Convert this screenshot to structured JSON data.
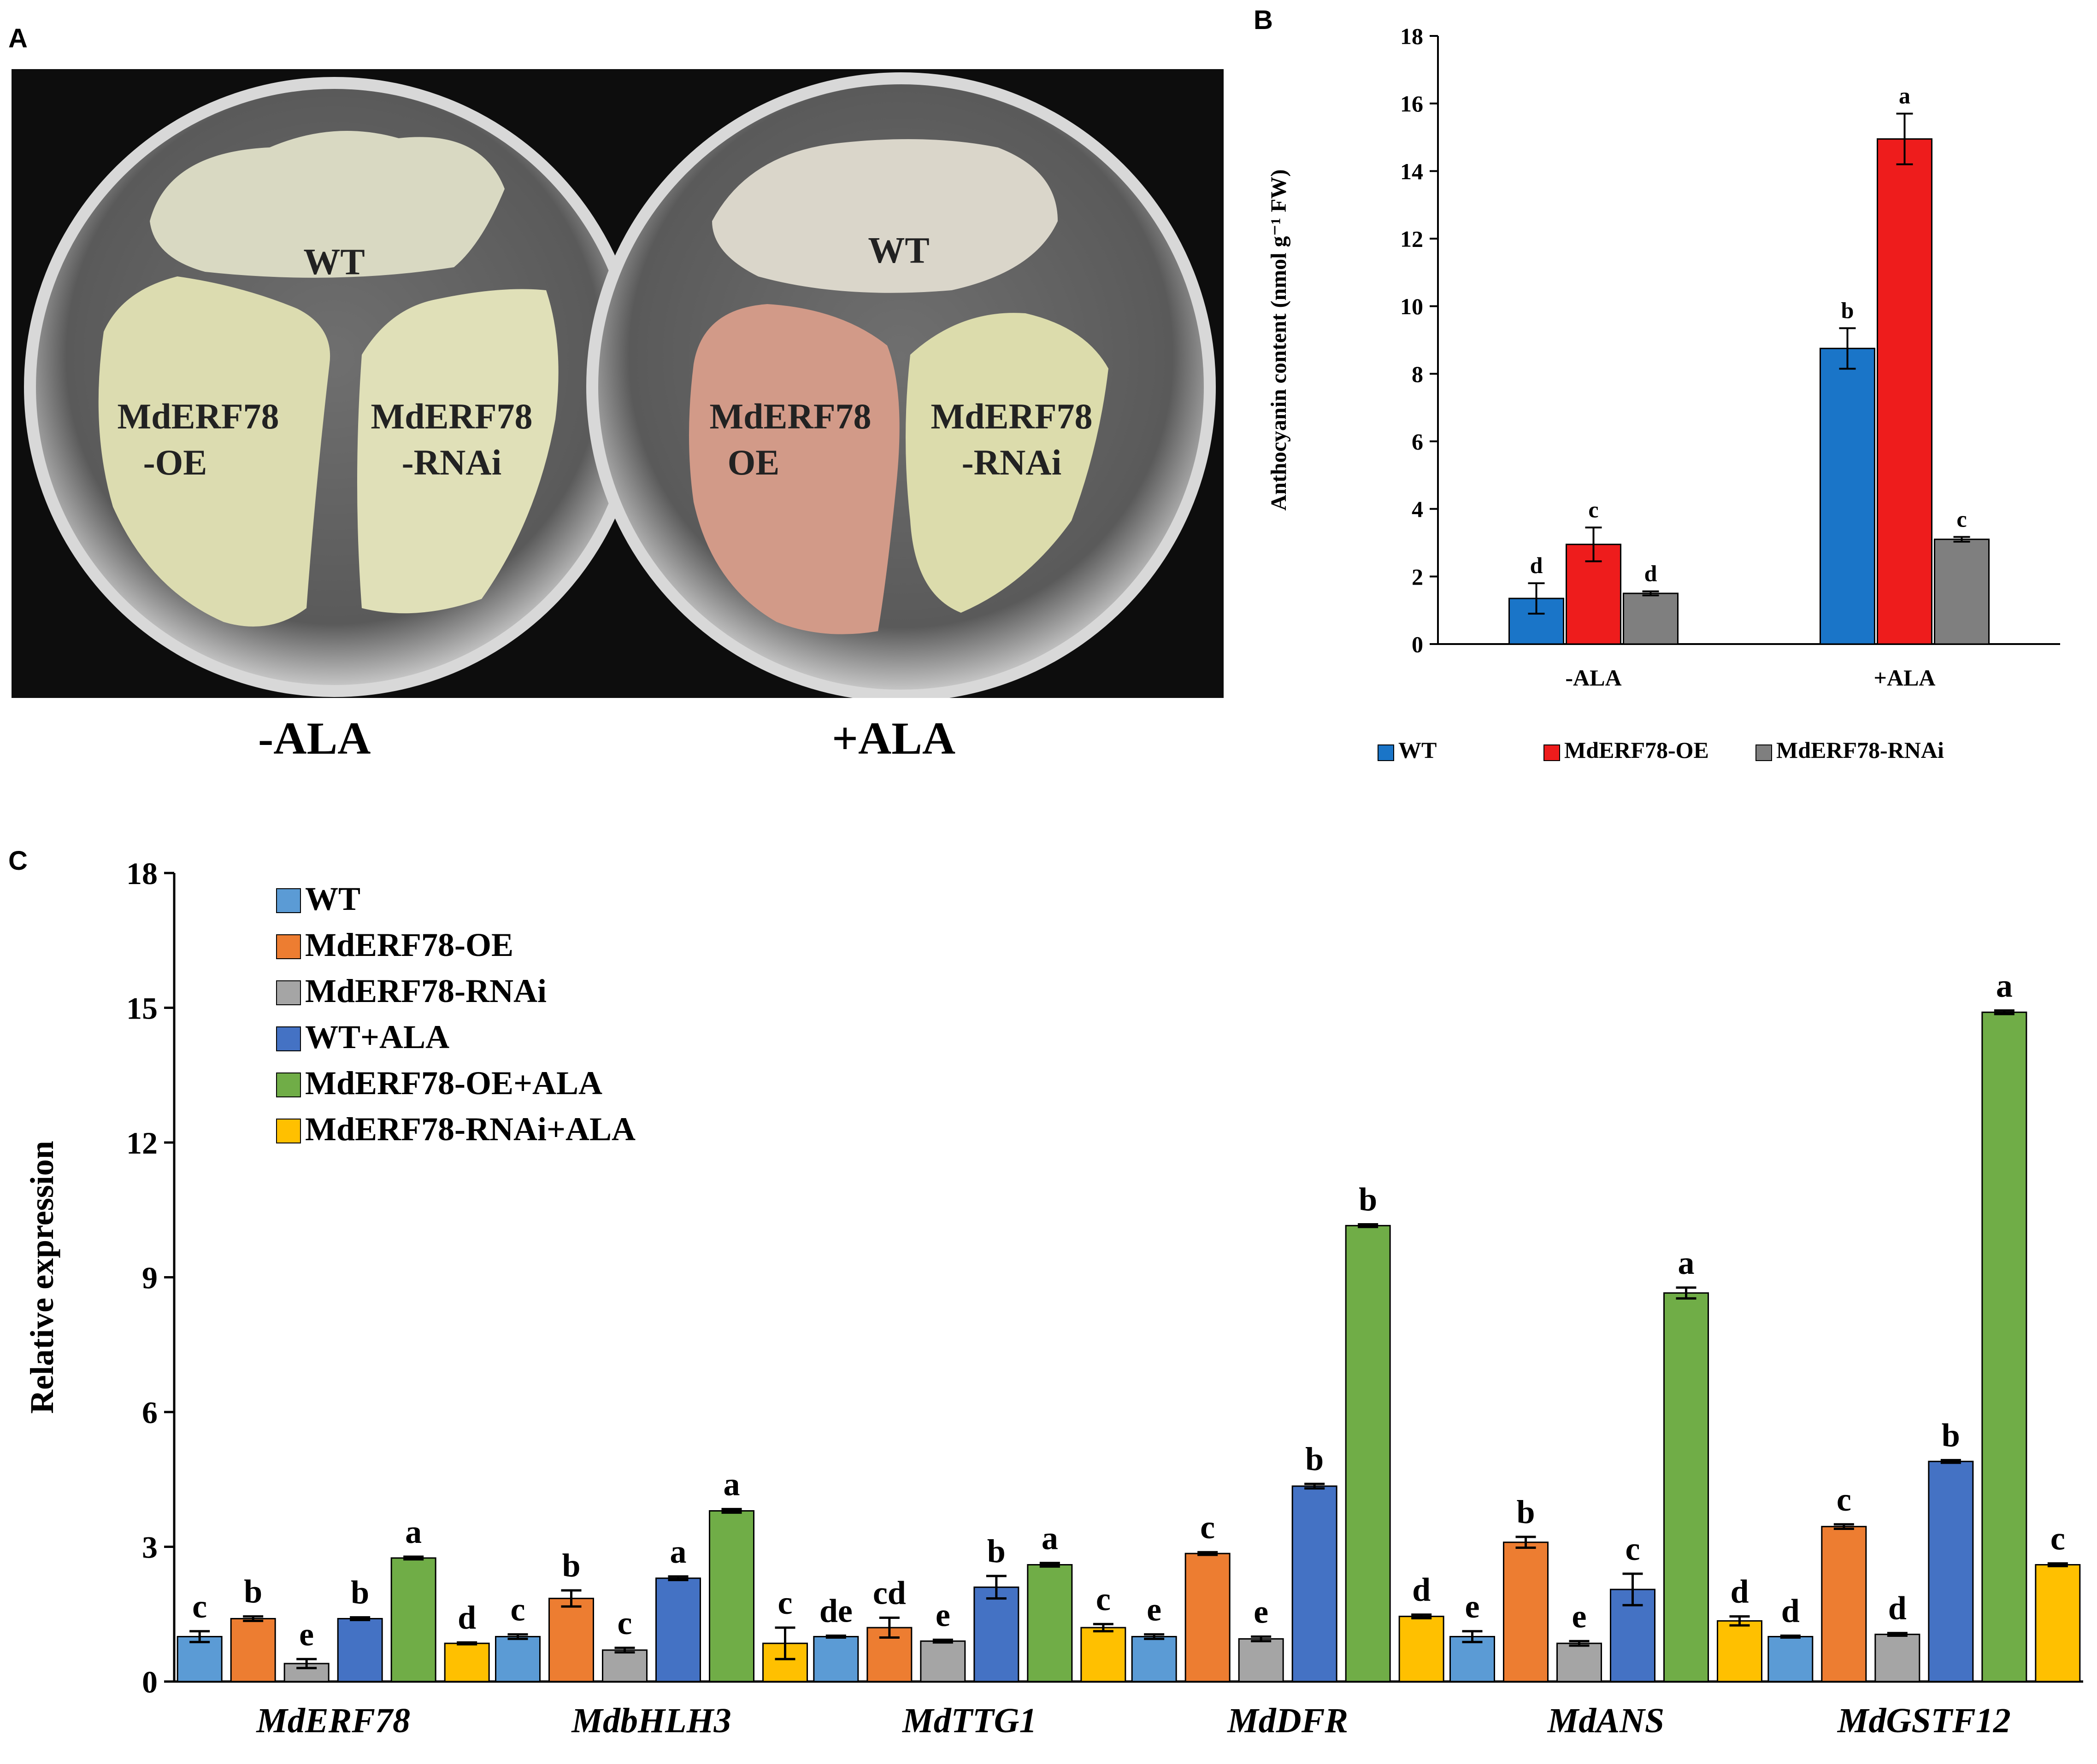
{
  "panel_a": {
    "letter": "A",
    "left_dish": {
      "top_label": "WT",
      "left_label_1": "MdERF78",
      "left_label_2": "-OE",
      "right_label_1": "MdERF78",
      "right_label_2": "-RNAi"
    },
    "right_dish": {
      "top_label": "WT",
      "left_label_1": "MdERF78",
      "left_label_2": "OE",
      "right_label_1": "MdERF78",
      "right_label_2": "-RNAi"
    },
    "caption_left": "-ALA",
    "caption_right": "+ALA",
    "colors": {
      "background": "#0d0d0d",
      "dish": "#c4c4c4",
      "callus_pale": "#dcdcb4",
      "callus_pink": "#d49a86",
      "callus_wt": "#dcdcc8"
    }
  },
  "chart_data": [
    {
      "panel": "B",
      "type": "bar",
      "title": "",
      "xlabel": "",
      "ylabel": "Anthocyanin content (nmol g⁻¹ FW)",
      "ylim": [
        0,
        18
      ],
      "yticks": [
        0,
        2,
        4,
        6,
        8,
        10,
        12,
        14,
        16,
        18
      ],
      "categories": [
        "-ALA",
        "+ALA"
      ],
      "series": [
        {
          "name": "WT",
          "color": "#1a75c8",
          "values": [
            1.35,
            8.75
          ],
          "errors": [
            0.45,
            0.6
          ],
          "letters": [
            "d",
            "b"
          ]
        },
        {
          "name": "MdERF78-OE",
          "color": "#ee1c1c",
          "values": [
            2.95,
            14.95
          ],
          "errors": [
            0.5,
            0.75
          ],
          "letters": [
            "c",
            "a"
          ]
        },
        {
          "name": "MdERF78-RNAi",
          "color": "#7f7f7f",
          "values": [
            1.5,
            3.1
          ],
          "errors": [
            0.06,
            0.07
          ],
          "letters": [
            "d",
            "c"
          ]
        }
      ],
      "legend": "bottom"
    },
    {
      "panel": "C",
      "type": "bar",
      "title": "",
      "xlabel": "",
      "ylabel": "Relative expression",
      "ylim": [
        0,
        18
      ],
      "yticks": [
        0,
        3,
        6,
        9,
        12,
        15,
        18
      ],
      "categories": [
        "MdERF78",
        "MdbHLH3",
        "MdTTG1",
        "MdDFR",
        "MdANS",
        "MdGSTF12"
      ],
      "series": [
        {
          "name": "WT",
          "color": "#5b9bd5",
          "values": [
            1.0,
            1.0,
            1.0,
            1.0,
            1.0,
            1.0
          ],
          "errors": [
            0.12,
            0.05,
            0.02,
            0.05,
            0.12,
            0.02
          ],
          "letters": [
            "c",
            "c",
            "de",
            "e",
            "e",
            "d"
          ]
        },
        {
          "name": "MdERF78-OE",
          "color": "#ed7d31",
          "values": [
            1.4,
            1.85,
            1.2,
            2.85,
            3.1,
            3.45
          ],
          "errors": [
            0.05,
            0.18,
            0.22,
            0.03,
            0.12,
            0.05
          ],
          "letters": [
            "b",
            "b",
            "cd",
            "c",
            "b",
            "c"
          ]
        },
        {
          "name": "MdERF78-RNAi",
          "color": "#a5a5a5",
          "values": [
            0.4,
            0.7,
            0.9,
            0.95,
            0.85,
            1.05
          ],
          "errors": [
            0.1,
            0.05,
            0.03,
            0.05,
            0.05,
            0.03
          ],
          "letters": [
            "e",
            "c",
            "e",
            "e",
            "e",
            "d"
          ]
        },
        {
          "name": "WT+ALA",
          "color": "#4472c4",
          "values": [
            1.4,
            2.3,
            2.1,
            4.35,
            2.05,
            4.9
          ],
          "errors": [
            0.03,
            0.04,
            0.25,
            0.05,
            0.35,
            0.03
          ],
          "letters": [
            "b",
            "a",
            "b",
            "b",
            "c",
            "b"
          ]
        },
        {
          "name": "MdERF78-OE+ALA",
          "color": "#70ad47",
          "values": [
            2.75,
            3.8,
            2.6,
            10.15,
            8.65,
            14.9
          ],
          "errors": [
            0.03,
            0.04,
            0.04,
            0.03,
            0.12,
            0.04
          ],
          "letters": [
            "a",
            "a",
            "a",
            "b",
            "a",
            "a"
          ]
        },
        {
          "name": "MdERF78-RNAi+ALA",
          "color": "#ffc000",
          "values": [
            0.85,
            0.85,
            1.2,
            1.45,
            1.35,
            2.6
          ],
          "errors": [
            0.02,
            0.35,
            0.08,
            0.04,
            0.1,
            0.03
          ],
          "letters": [
            "d",
            "c",
            "c",
            "d",
            "d",
            "c"
          ]
        }
      ],
      "legend": "top-left"
    }
  ],
  "labels": {
    "panel_b_letter": "B",
    "panel_c_letter": "C"
  }
}
